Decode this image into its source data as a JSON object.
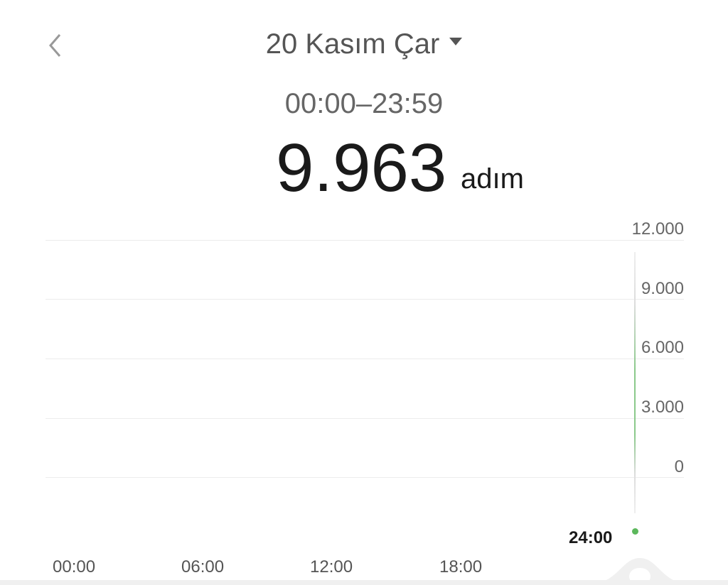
{
  "header": {
    "date": "20 Kasım Çar",
    "time_range": "00:00–23:59"
  },
  "summary": {
    "steps": "9.963",
    "unit": "adım"
  },
  "chart_data": {
    "type": "bar",
    "y_ticks": [
      "12.000",
      "9.000",
      "6.000",
      "3.000",
      "0"
    ],
    "ylim": [
      0,
      12000
    ],
    "x_ticks": [
      "00:00",
      "06:00",
      "12:00",
      "18:00"
    ],
    "cursor_label": "24:00",
    "grid": true,
    "colors": {
      "accent": "#5cb85c",
      "grid": "#ececec"
    }
  }
}
